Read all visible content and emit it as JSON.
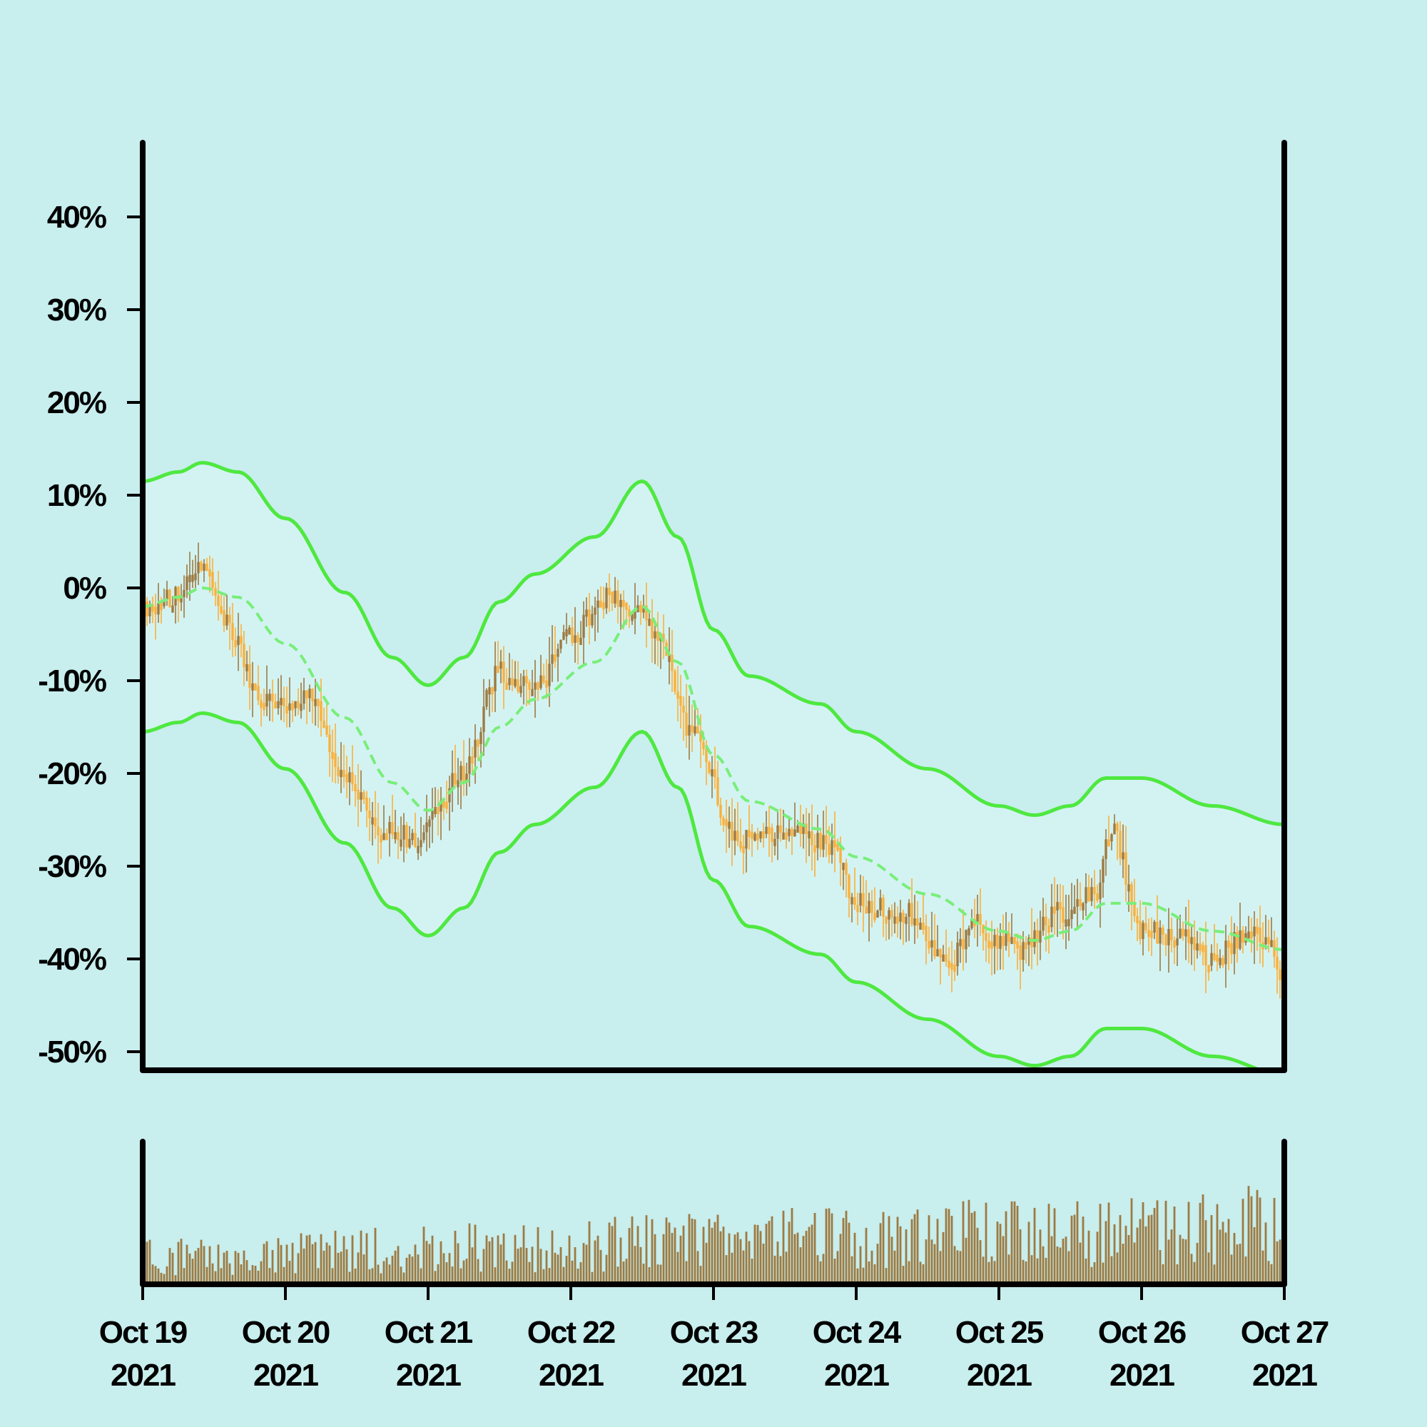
{
  "chart_data": {
    "type": "candlestick",
    "title": "",
    "xlabel": "",
    "ylabel": "",
    "y_unit": "%",
    "ylim": [
      -52,
      48
    ],
    "y_ticks": [
      "40%",
      "30%",
      "20%",
      "10%",
      "0%",
      "-10%",
      "-20%",
      "-30%",
      "-40%",
      "-50%"
    ],
    "y_tick_values": [
      40,
      30,
      20,
      10,
      0,
      -10,
      -20,
      -30,
      -40,
      -50
    ],
    "x_range": [
      "2021-10-19",
      "2021-10-27"
    ],
    "x_ticks": [
      {
        "date": "Oct 19",
        "year": "2021"
      },
      {
        "date": "Oct 20",
        "year": "2021"
      },
      {
        "date": "Oct 21",
        "year": "2021"
      },
      {
        "date": "Oct 22",
        "year": "2021"
      },
      {
        "date": "Oct 23",
        "year": "2021"
      },
      {
        "date": "Oct 24",
        "year": "2021"
      },
      {
        "date": "Oct 25",
        "year": "2021"
      },
      {
        "date": "Oct 26",
        "year": "2021"
      },
      {
        "date": "Oct 27",
        "year": "2021"
      }
    ],
    "price_path": [
      [
        "2021-10-19",
        -2
      ],
      [
        "2021-10-19 06:00",
        -1
      ],
      [
        "2021-10-19 10:00",
        3
      ],
      [
        "2021-10-19 14:00",
        -4
      ],
      [
        "2021-10-19 20:00",
        -12
      ],
      [
        "2021-10-20 04:00",
        -12
      ],
      [
        "2021-10-20 10:00",
        -20
      ],
      [
        "2021-10-20 16:00",
        -26
      ],
      [
        "2021-10-20 22:00",
        -27
      ],
      [
        "2021-10-21 06:00",
        -20
      ],
      [
        "2021-10-21 12:00",
        -9
      ],
      [
        "2021-10-21 18:00",
        -11
      ],
      [
        "2021-10-22",
        -5
      ],
      [
        "2021-10-22 06:00",
        -1
      ],
      [
        "2021-10-22 12:00",
        -3
      ],
      [
        "2021-10-22 15:00",
        -6
      ],
      [
        "2021-10-22 20:00",
        -15
      ],
      [
        "2021-10-23 04:00",
        -27
      ],
      [
        "2021-10-23 14:00",
        -26
      ],
      [
        "2021-10-23 20:00",
        -28
      ],
      [
        "2021-10-24",
        -34
      ],
      [
        "2021-10-24 08:00",
        -35
      ],
      [
        "2021-10-24 16:00",
        -40
      ],
      [
        "2021-10-24 20:00",
        -36
      ],
      [
        "2021-10-25",
        -38
      ],
      [
        "2021-10-25 04:00",
        -39
      ],
      [
        "2021-10-25 10:00",
        -35
      ],
      [
        "2021-10-25 16:00",
        -33
      ],
      [
        "2021-10-25 19:00",
        -26
      ],
      [
        "2021-10-26",
        -37
      ],
      [
        "2021-10-26 08:00",
        -38
      ],
      [
        "2021-10-26 12:00",
        -40
      ],
      [
        "2021-10-26 18:00",
        -37
      ],
      [
        "2021-10-26 21:00",
        -38
      ],
      [
        "2021-10-27",
        -42
      ]
    ],
    "moving_average": [
      [
        "2021-10-19",
        -2
      ],
      [
        "2021-10-19 06:00",
        -1
      ],
      [
        "2021-10-19 10:00",
        0
      ],
      [
        "2021-10-19 16:00",
        -1
      ],
      [
        "2021-10-20",
        -6
      ],
      [
        "2021-10-20 10:00",
        -14
      ],
      [
        "2021-10-20 18:00",
        -21
      ],
      [
        "2021-10-21",
        -24
      ],
      [
        "2021-10-21 06:00",
        -21
      ],
      [
        "2021-10-21 12:00",
        -15
      ],
      [
        "2021-10-21 18:00",
        -12
      ],
      [
        "2021-10-22 04:00",
        -8
      ],
      [
        "2021-10-22 12:00",
        -2
      ],
      [
        "2021-10-22 18:00",
        -8
      ],
      [
        "2021-10-23",
        -18
      ],
      [
        "2021-10-23 06:00",
        -23
      ],
      [
        "2021-10-23 18:00",
        -26
      ],
      [
        "2021-10-24",
        -29
      ],
      [
        "2021-10-24 12:00",
        -33
      ],
      [
        "2021-10-25",
        -37
      ],
      [
        "2021-10-25 06:00",
        -38
      ],
      [
        "2021-10-25 12:00",
        -37
      ],
      [
        "2021-10-25 18:00",
        -34
      ],
      [
        "2021-10-26",
        -34
      ],
      [
        "2021-10-26 12:00",
        -37
      ],
      [
        "2021-10-27",
        -39
      ]
    ],
    "band_width": 13.5,
    "volume_scale": 100,
    "series": [
      {
        "role": "candles",
        "color": "#fbb03b"
      },
      {
        "role": "moving-average",
        "color": "#79ee79"
      },
      {
        "role": "bands",
        "color": "#4fe840"
      },
      {
        "role": "volume",
        "color": "#9d7a42"
      }
    ],
    "grid": false,
    "legend": "none"
  }
}
